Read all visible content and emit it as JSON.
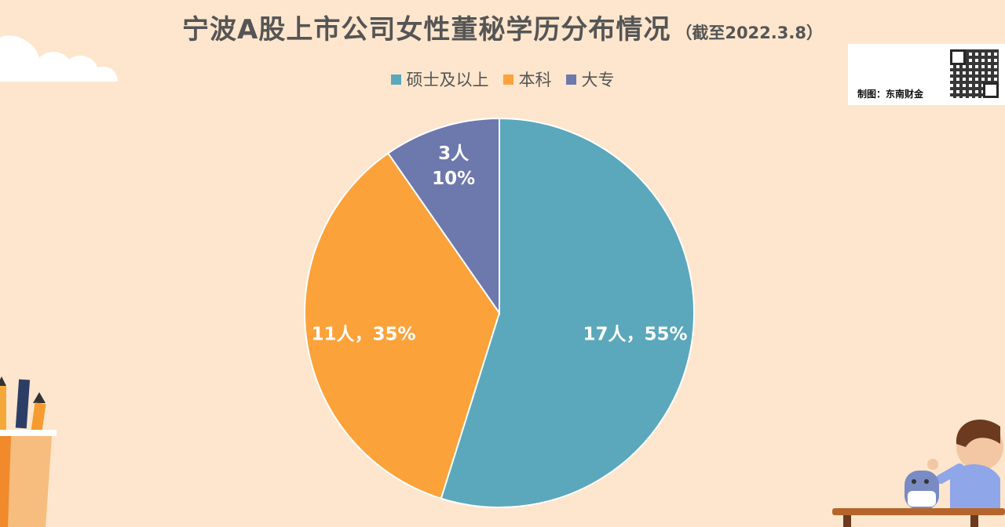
{
  "title": "宁波A股上市公司女性董秘学历分布情况",
  "subtitle": "（截至2022.3.8）",
  "maker_label": "制图：东南财金",
  "colors": {
    "background": "#fde6cd",
    "masters": "#5ba7bb",
    "bachelor": "#fca23a",
    "college": "#6d78ad"
  },
  "chart_data": {
    "type": "pie",
    "title": "宁波A股上市公司女性董秘学历分布情况",
    "subtitle": "（截至2022.3.8）",
    "legend_position": "top",
    "slices": [
      {
        "label": "硕士及以上",
        "value": 17,
        "percent": 55,
        "data_label": "17人，55%"
      },
      {
        "label": "本科",
        "value": 11,
        "percent": 35,
        "data_label": "11人，35%"
      },
      {
        "label": "大专",
        "value": 3,
        "percent": 10,
        "data_label_line1": "3人",
        "data_label_line2": "10%"
      }
    ]
  }
}
